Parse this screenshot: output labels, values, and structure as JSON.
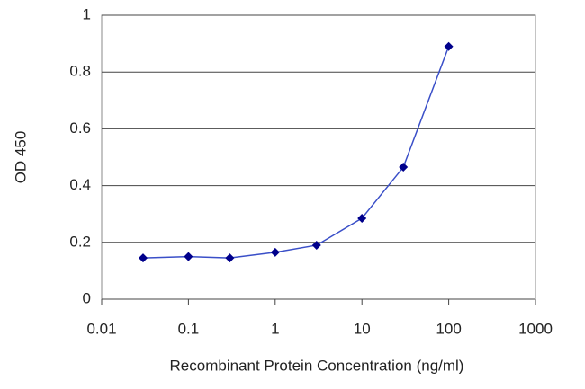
{
  "chart_data": {
    "type": "line",
    "x_label": "Recombinant Protein Concentration (ng/ml)",
    "y_label": "OD 450",
    "x": [
      0.03,
      0.1,
      0.3,
      1,
      3,
      10,
      30,
      100
    ],
    "values": [
      0.145,
      0.15,
      0.145,
      0.165,
      0.19,
      0.285,
      0.465,
      0.89
    ],
    "color": "#00008b",
    "x_log": true,
    "xlim": [
      0.01,
      1000
    ],
    "xticks": [
      0.01,
      0.1,
      1,
      10,
      100,
      1000
    ],
    "ylim": [
      0,
      1
    ],
    "yticks": [
      0,
      0.2,
      0.4,
      0.6,
      0.8,
      1
    ],
    "grid": true
  }
}
